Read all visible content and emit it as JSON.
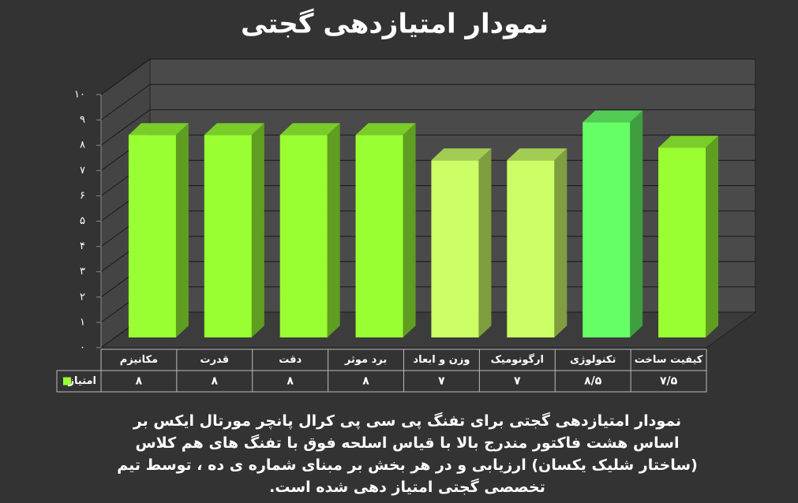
{
  "chart_data": {
    "type": "bar3d",
    "title": "نمودار امتیازدهی گجتی",
    "categories": [
      "مکانیزم",
      "قدرت",
      "دقت",
      "برد موثر",
      "وزن و ابعاد",
      "ارگونومیک",
      "تکنولوژی",
      "کیفیت ساخت"
    ],
    "series": [
      {
        "name": "امتیاز",
        "color": "#99ff33",
        "values": [
          8,
          8,
          8,
          8,
          7,
          7,
          8.5,
          7.5
        ],
        "value_labels": [
          "۸",
          "۸",
          "۸",
          "۸",
          "۷",
          "۷",
          "۸/۵",
          "۷/۵"
        ],
        "colors": [
          "#99ff33",
          "#99ff33",
          "#99ff33",
          "#99ff33",
          "#ccff66",
          "#ccff66",
          "#66ff66",
          "#99ff33"
        ]
      }
    ],
    "ylim": [
      0,
      10
    ],
    "yticks": [
      {
        "value": 0,
        "label": "۰"
      },
      {
        "value": 1,
        "label": "۱"
      },
      {
        "value": 2,
        "label": "۲"
      },
      {
        "value": 3,
        "label": "۳"
      },
      {
        "value": 4,
        "label": "۴"
      },
      {
        "value": 5,
        "label": "۵"
      },
      {
        "value": 6,
        "label": "۶"
      },
      {
        "value": 7,
        "label": "۷"
      },
      {
        "value": 8,
        "label": "۸"
      },
      {
        "value": 9,
        "label": "۹"
      },
      {
        "value": 10,
        "label": "۱۰"
      }
    ],
    "grid": true,
    "caption": "نمودار امتیازدهی گجتی برای تفنگ پی سی پی کرال پانچر مورتال ایکس بر اساس هشت فاکتور مندرج بالا با قیاس اسلحه فوق با تفنگ های هم کلاس (ساختار شلیک یکسان) ارزیابی و در هر بخش بر مبنای شماره ی ده ، توسط تیم تخصصی گجتی امتیاز دهی شده است."
  }
}
